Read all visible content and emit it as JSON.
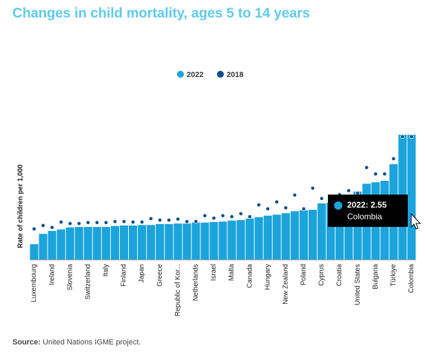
{
  "chart_data": {
    "type": "bar",
    "title": "Changes in child mortality, ages 5 to 14 years",
    "y_label": "Rate of children per 1,000",
    "categories": [
      "Luxembourg",
      null,
      "Ireland",
      null,
      "Slovenia",
      null,
      "Switzerland",
      null,
      "Italy",
      null,
      "Finland",
      null,
      "Japan",
      null,
      "Greece",
      null,
      "Republic of Kor...",
      null,
      "Netherlands",
      null,
      "Israel",
      null,
      "Malta",
      null,
      "Canada",
      null,
      "Hungary",
      null,
      "New Zealand",
      null,
      "Poland",
      null,
      "Cyprus",
      null,
      "Croatia",
      null,
      "United States",
      null,
      "Bulgaria",
      null,
      "Türkiye",
      null,
      "Colombia"
    ],
    "series": [
      {
        "name": "2022",
        "color": "#1ba3dc",
        "values": [
          0.32,
          0.53,
          0.59,
          0.62,
          0.66,
          0.67,
          0.67,
          0.67,
          0.67,
          0.69,
          0.7,
          0.7,
          0.71,
          0.71,
          0.73,
          0.73,
          0.74,
          0.74,
          0.76,
          0.76,
          0.77,
          0.78,
          0.8,
          0.81,
          0.84,
          0.87,
          0.9,
          0.92,
          0.95,
          0.99,
          1.01,
          1.02,
          1.15,
          1.16,
          1.2,
          1.3,
          1.39,
          1.55,
          1.58,
          1.61,
          1.95,
          2.55,
          2.55
        ]
      },
      {
        "name": "2018",
        "color": "#0d4f8c",
        "values": [
          0.63,
          0.7,
          0.66,
          0.77,
          0.74,
          0.74,
          0.76,
          0.76,
          0.76,
          0.78,
          0.78,
          0.77,
          0.77,
          0.84,
          0.81,
          0.81,
          0.83,
          0.78,
          0.78,
          0.9,
          0.85,
          0.9,
          0.88,
          0.94,
          0.88,
          1.12,
          1.04,
          1.18,
          1.06,
          1.32,
          1.04,
          1.46,
          1.25,
          1.19,
          1.33,
          1.41,
          1.36,
          1.88,
          1.75,
          1.75,
          2.06,
          2.51,
          2.51
        ]
      }
    ],
    "ylim": [
      0,
      2.8
    ],
    "tooltip": {
      "text": "2022: 2.55",
      "index": 42
    },
    "source_label": "Source:",
    "source_text": "United Nations IGME project."
  }
}
